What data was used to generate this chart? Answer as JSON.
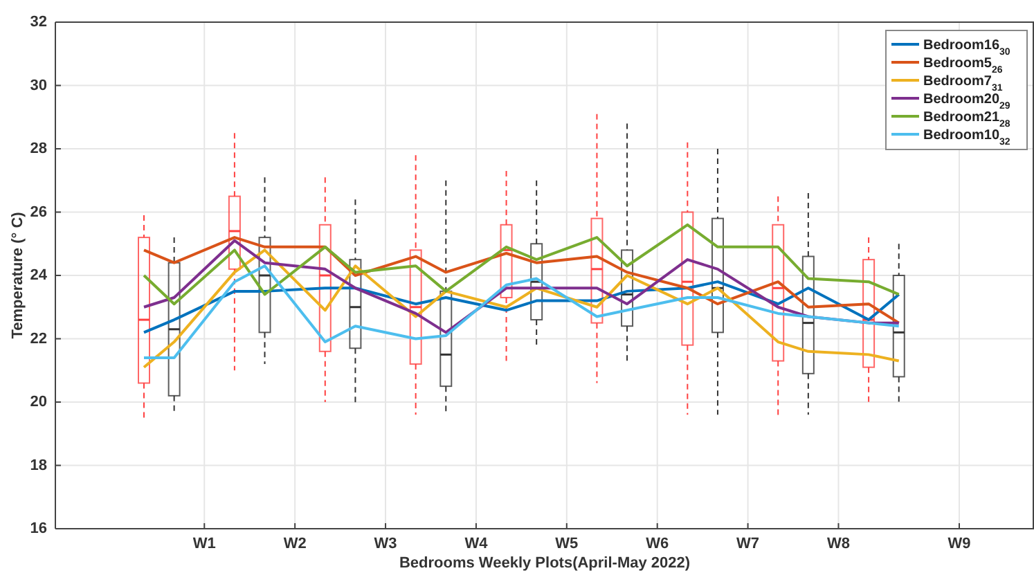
{
  "chart_data": {
    "type": "line",
    "xlabel": "Bedrooms Weekly Plots(April-May 2022)",
    "ylabel": "Temperature (° C)",
    "categories": [
      null,
      null,
      "W1",
      null,
      null,
      "W2",
      null,
      null,
      "W3",
      null,
      null,
      "W4",
      null,
      null,
      "W5",
      null,
      null,
      "W6",
      null,
      null,
      "W7",
      null,
      null,
      "W8",
      null,
      null,
      null,
      "W9"
    ],
    "ylim": [
      16,
      32
    ],
    "yticks": [
      16,
      18,
      20,
      22,
      24,
      26,
      28,
      30,
      32
    ],
    "grid": true,
    "legend": "top right",
    "marker": "none",
    "line_style": "solid",
    "series": [
      {
        "type": "box",
        "color": "#ff4040",
        "boxes": [
          {
            "low": 19.4,
            "q1": 20.6,
            "median": 22.6,
            "q3": 25.2,
            "high": 25.9
          },
          null,
          null,
          {
            "low": 21.0,
            "q1": 24.2,
            "median": 25.4,
            "q3": 26.5,
            "high": 28.5
          },
          null,
          null,
          {
            "low": 20.0,
            "q1": 21.6,
            "median": 24.0,
            "q3": 25.6,
            "high": 27.1
          },
          null,
          null,
          {
            "low": 19.6,
            "q1": 21.2,
            "median": 23.0,
            "q3": 24.8,
            "high": 27.8
          },
          null,
          null,
          {
            "low": 21.3,
            "q1": 23.3,
            "median": 24.8,
            "q3": 25.6,
            "high": 27.3
          },
          null,
          null,
          {
            "low": 20.6,
            "q1": 22.5,
            "median": 24.2,
            "q3": 25.8,
            "high": 29.1
          },
          null,
          null,
          {
            "low": 19.6,
            "q1": 21.8,
            "median": 23.8,
            "q3": 26.0,
            "high": 28.2
          },
          null,
          null,
          {
            "low": 19.5,
            "q1": 21.3,
            "median": 23.6,
            "q3": 25.6,
            "high": 26.5
          },
          null,
          null,
          {
            "low": 19.9,
            "q1": 21.1,
            "median": 22.6,
            "q3": 24.5,
            "high": 25.2
          },
          null,
          null,
          null
        ]
      },
      {
        "type": "box",
        "color": "#333333",
        "boxes": [
          null,
          {
            "low": 19.7,
            "q1": 20.2,
            "median": 22.3,
            "q3": 24.4,
            "high": 25.2
          },
          null,
          null,
          {
            "low": 21.2,
            "q1": 22.2,
            "median": 24.0,
            "q3": 25.2,
            "high": 27.1
          },
          null,
          null,
          {
            "low": 19.9,
            "q1": 21.7,
            "median": 23.0,
            "q3": 24.5,
            "high": 26.4
          },
          null,
          null,
          {
            "low": 19.6,
            "q1": 20.5,
            "median": 21.5,
            "q3": 23.5,
            "high": 27.0
          },
          null,
          null,
          {
            "low": 21.7,
            "q1": 22.6,
            "median": 23.8,
            "q3": 25.0,
            "high": 27.0
          },
          null,
          null,
          {
            "low": 21.2,
            "q1": 22.4,
            "median": 23.4,
            "q3": 24.8,
            "high": 28.8
          },
          null,
          null,
          {
            "low": 19.6,
            "q1": 22.2,
            "median": 23.6,
            "q3": 25.8,
            "high": 28.0
          },
          null,
          null,
          {
            "low": 19.6,
            "q1": 20.9,
            "median": 22.5,
            "q3": 24.6,
            "high": 26.6
          },
          null,
          null,
          {
            "low": 19.9,
            "q1": 20.8,
            "median": 22.2,
            "q3": 24.0,
            "high": 25.0
          },
          null,
          null
        ]
      },
      {
        "name": "Bedroom16$_{30}$",
        "color": "#0072bd",
        "values": [
          22.2,
          22.6,
          null,
          23.5,
          23.5,
          null,
          23.6,
          23.6,
          null,
          23.1,
          23.3,
          null,
          22.9,
          23.2,
          null,
          23.2,
          23.5,
          null,
          23.6,
          23.8,
          null,
          23.1,
          23.6,
          null,
          22.6,
          23.4,
          null,
          null
        ]
      },
      {
        "name": "Bedroom5$_{26}$",
        "color": "#d95319",
        "values": [
          24.8,
          24.4,
          null,
          25.2,
          24.9,
          null,
          24.9,
          24.0,
          null,
          24.6,
          24.1,
          null,
          24.7,
          24.4,
          null,
          24.6,
          24.1,
          null,
          23.6,
          23.1,
          null,
          23.8,
          23.0,
          null,
          23.1,
          22.5,
          null,
          null
        ]
      },
      {
        "name": "Bedroom7$_{31}$",
        "color": "#edb120",
        "values": [
          21.1,
          21.9,
          null,
          24.1,
          24.8,
          null,
          22.9,
          24.3,
          null,
          22.7,
          23.5,
          null,
          23.0,
          23.6,
          null,
          23.0,
          24.0,
          null,
          23.1,
          23.6,
          null,
          21.9,
          21.6,
          null,
          21.5,
          21.3,
          null,
          null
        ]
      },
      {
        "name": "Bedroom20$_{29}$",
        "color": "#7e2f8e",
        "values": [
          23.0,
          23.3,
          null,
          25.1,
          24.4,
          null,
          24.2,
          23.6,
          null,
          22.8,
          22.2,
          null,
          23.6,
          23.6,
          null,
          23.6,
          23.1,
          null,
          24.5,
          24.2,
          null,
          23.0,
          22.7,
          null,
          22.5,
          22.5,
          null,
          null
        ]
      },
      {
        "name": "Bedroom21$_{28}$",
        "color": "#77ac30",
        "values": [
          24.0,
          23.1,
          null,
          24.8,
          23.4,
          null,
          24.9,
          24.1,
          null,
          24.3,
          23.5,
          null,
          24.9,
          24.5,
          null,
          25.2,
          24.3,
          null,
          25.6,
          24.9,
          null,
          24.9,
          23.9,
          null,
          23.8,
          23.4,
          null,
          null
        ]
      },
      {
        "name": "Bedroom10$_{32}$",
        "color": "#4dbeee",
        "values": [
          21.4,
          21.4,
          null,
          23.8,
          24.3,
          null,
          21.9,
          22.4,
          null,
          22.0,
          22.1,
          null,
          23.7,
          23.9,
          null,
          22.7,
          22.9,
          null,
          23.3,
          23.3,
          null,
          22.8,
          22.7,
          null,
          22.5,
          22.4,
          null,
          null
        ]
      }
    ]
  }
}
